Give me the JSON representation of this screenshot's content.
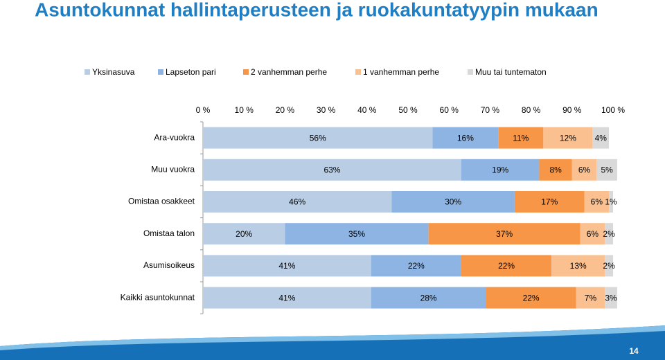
{
  "chart_data": {
    "type": "stacked_barh",
    "title": "Asuntokunnat hallintaperusteen ja ruokakuntatyypin mukaan",
    "categories": [
      "Ara-vuokra",
      "Muu vuokra",
      "Omistaa osakkeet",
      "Omistaa talon",
      "Asumisoikeus",
      "Kaikki asuntokunnat"
    ],
    "series": [
      {
        "name": "Yksinasuva",
        "color": "#b9cde5",
        "values": [
          56,
          63,
          46,
          20,
          41,
          41
        ],
        "value_labels": [
          "56%",
          "63%",
          "46%",
          "20%",
          "41%",
          "41%"
        ]
      },
      {
        "name": "Lapseton pari",
        "color": "#8eb4e3",
        "values": [
          16,
          19,
          30,
          35,
          22,
          28
        ],
        "value_labels": [
          "16%",
          "19%",
          "30%",
          "35%",
          "22%",
          "28%"
        ]
      },
      {
        "name": "2 vanhemman perhe",
        "color": "#f79646",
        "values": [
          11,
          8,
          17,
          37,
          22,
          22
        ],
        "value_labels": [
          "11%",
          "8%",
          "17%",
          "37%",
          "22%",
          "22%"
        ]
      },
      {
        "name": "1 vanhemman perhe",
        "color": "#fac090",
        "values": [
          12,
          6,
          6,
          6,
          13,
          7
        ],
        "value_labels": [
          "12%",
          "6%",
          "6%",
          "6%",
          "13%",
          "7%"
        ]
      },
      {
        "name": "Muu tai tuntematon",
        "color": "#d9d9d9",
        "values": [
          4,
          5,
          1,
          2,
          2,
          3
        ],
        "value_labels": [
          "4%",
          "5%",
          "1%",
          "2%",
          "2%",
          "3%"
        ]
      }
    ],
    "xlim": [
      0,
      100
    ],
    "xticks": [
      {
        "value": 0,
        "label": "0 %"
      },
      {
        "value": 10,
        "label": "10 %"
      },
      {
        "value": 20,
        "label": "20 %"
      },
      {
        "value": 30,
        "label": "30 %"
      },
      {
        "value": 40,
        "label": "40 %"
      },
      {
        "value": 50,
        "label": "50 %"
      },
      {
        "value": 60,
        "label": "60 %"
      },
      {
        "value": 70,
        "label": "70 %"
      },
      {
        "value": 80,
        "label": "80 %"
      },
      {
        "value": 90,
        "label": "90 %"
      },
      {
        "value": 100,
        "label": "100 %"
      }
    ],
    "legend": "top"
  },
  "page_number": "14"
}
